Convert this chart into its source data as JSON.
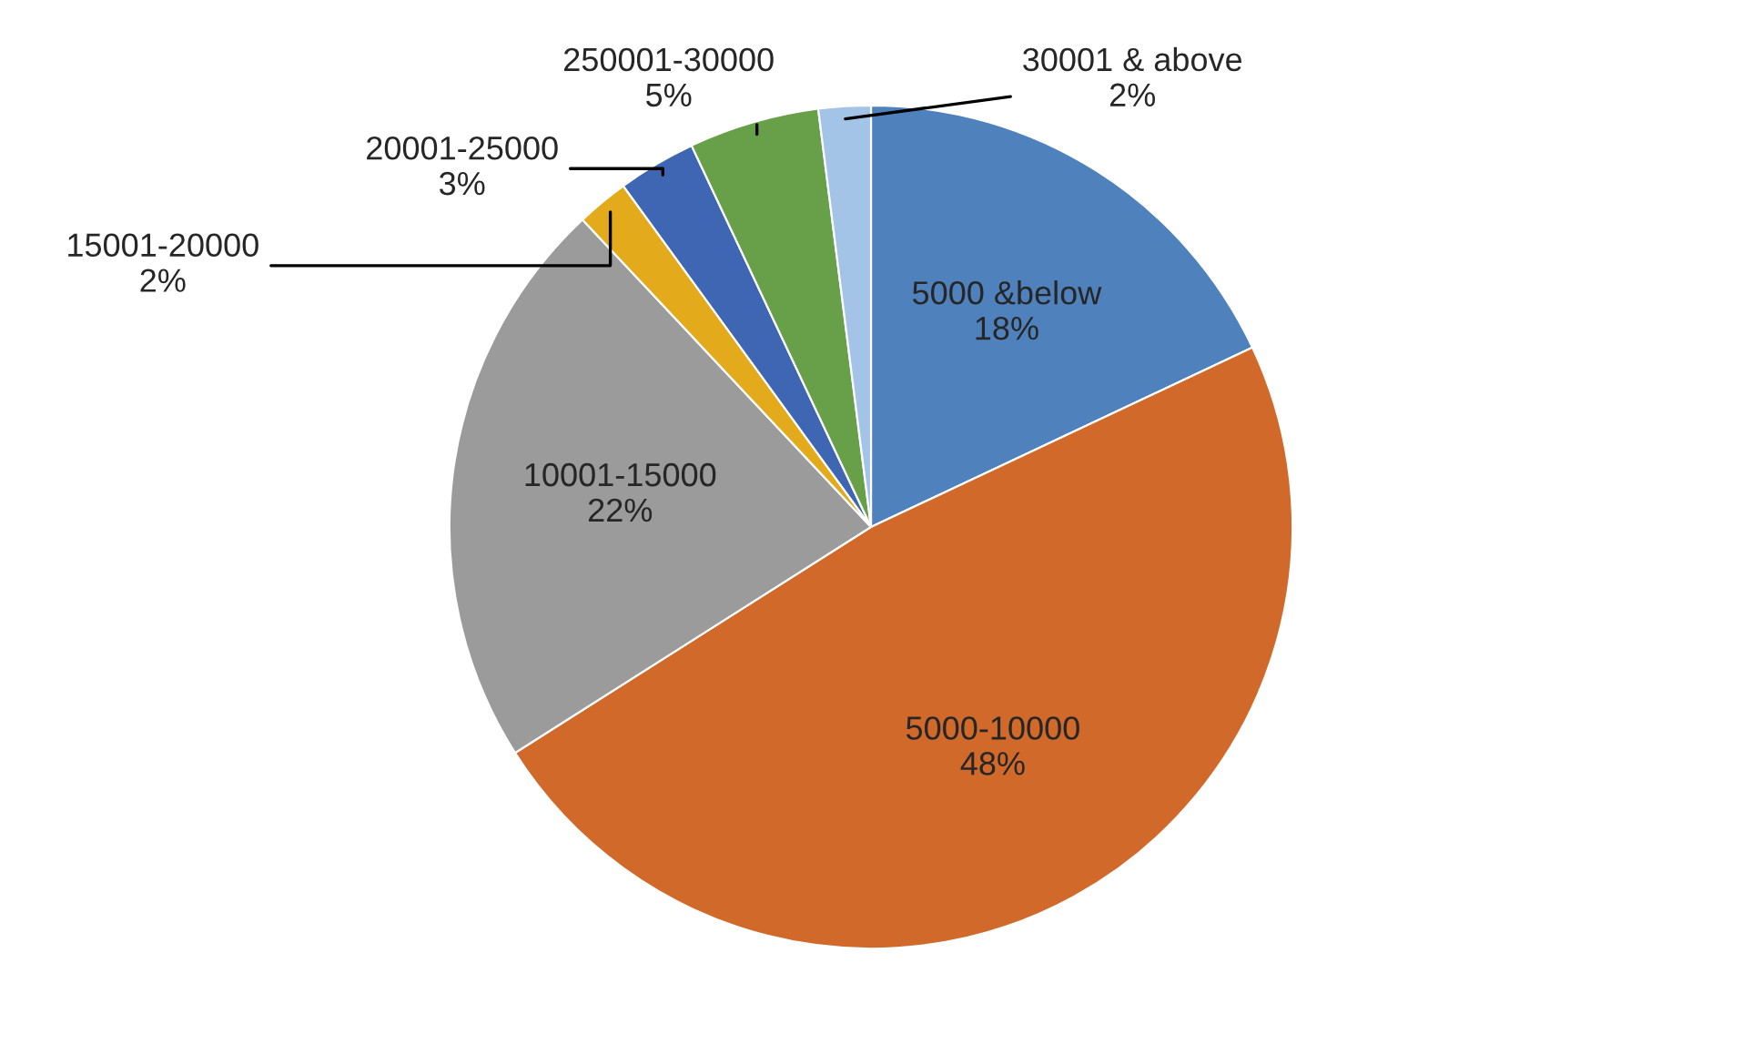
{
  "chart_data": {
    "type": "pie",
    "categories": [
      "5000 &below",
      "5000-10000",
      "10001-15000",
      "15001-20000",
      "20001-25000",
      "250001-30000",
      "30001 & above"
    ],
    "values": [
      18,
      48,
      22,
      2,
      3,
      5,
      2
    ],
    "value_labels": [
      "18%",
      "48%",
      "22%",
      "2%",
      "3%",
      "5%",
      "2%"
    ],
    "colors": [
      "#4f81bd",
      "#d0692a",
      "#9b9b9b",
      "#e3aa1c",
      "#3e66b3",
      "#68a04a",
      "#a3c4e6"
    ]
  }
}
